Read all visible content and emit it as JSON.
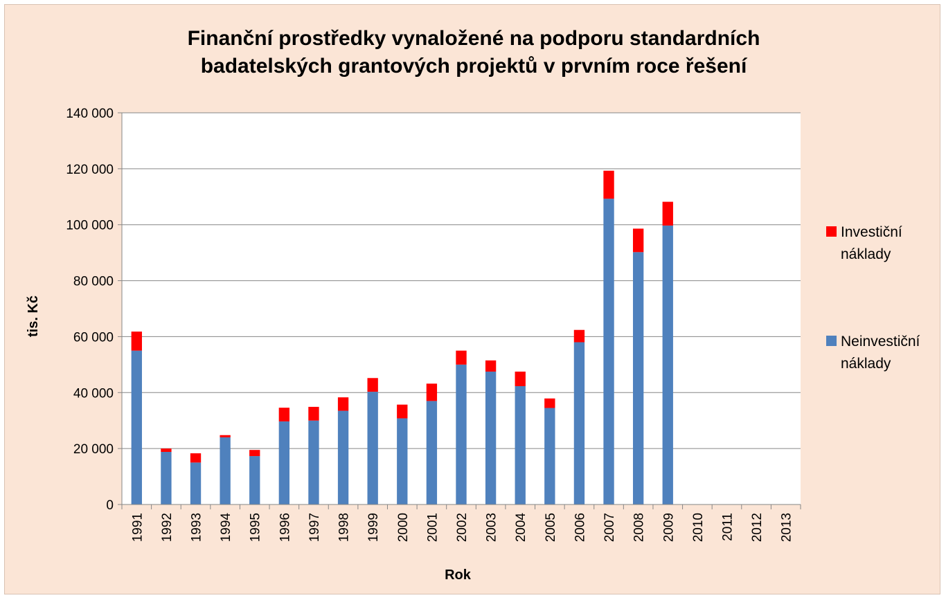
{
  "chart_data": {
    "type": "bar",
    "stacked": true,
    "title": [
      "Finanční prostředky vynaložené na podporu standardních",
      "badatelských grantových projektů v prvním roce řešení"
    ],
    "xlabel": "Rok",
    "ylabel": "tis. Kč",
    "ylim": [
      0,
      140000
    ],
    "yticks": [
      0,
      20000,
      40000,
      60000,
      80000,
      100000,
      120000,
      140000
    ],
    "ytick_labels": [
      "0",
      "20 000",
      "40 000",
      "60 000",
      "80 000",
      "100 000",
      "120 000",
      "140 000"
    ],
    "grid": true,
    "legend_position": "right",
    "categories": [
      "1991",
      "1992",
      "1993",
      "1994",
      "1995",
      "1996",
      "1997",
      "1998",
      "1999",
      "2000",
      "2001",
      "2002",
      "2003",
      "2004",
      "2005",
      "2006",
      "2007",
      "2008",
      "2009",
      "2010",
      "2011",
      "2012",
      "2013"
    ],
    "series": [
      {
        "name": "Neinvestiční náklady",
        "legend_lines": [
          "Neinvestiční",
          "náklady"
        ],
        "color": "#4f81bd",
        "values": [
          55000,
          18800,
          15000,
          24000,
          17300,
          29700,
          30000,
          33500,
          40300,
          30800,
          37000,
          50000,
          47500,
          42300,
          34500,
          58000,
          109300,
          90200,
          99700,
          0,
          0,
          0,
          0
        ]
      },
      {
        "name": "Investiční náklady",
        "legend_lines": [
          "Investiční",
          "náklady"
        ],
        "color": "#ff0000",
        "values": [
          6800,
          1200,
          3300,
          800,
          2200,
          4900,
          4900,
          4800,
          4900,
          4900,
          6200,
          5000,
          4000,
          5200,
          3400,
          4400,
          10000,
          8400,
          8500,
          0,
          0,
          0,
          0
        ]
      }
    ]
  }
}
